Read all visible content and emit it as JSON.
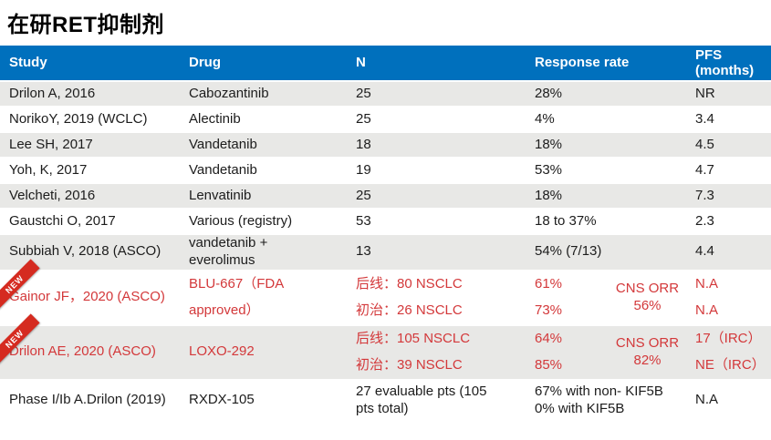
{
  "title": "在研RET抑制剂",
  "colors": {
    "header_bg": "#0070bd",
    "alt_row_bg": "#e8e8e6",
    "red_text": "#d3383a",
    "ribbon_bg": "#d52b20"
  },
  "ribbon_label": "NEW",
  "table": {
    "headers": [
      "Study",
      "Drug",
      "N",
      "Response rate",
      "PFS (months)"
    ],
    "rows": [
      {
        "study": "Drilon A, 2016",
        "drug": [
          "Cabozantinib"
        ],
        "n": [
          "25"
        ],
        "rr": [
          "28%"
        ],
        "pfs": [
          "NR"
        ],
        "shade": "alt"
      },
      {
        "study": "NorikoY, 2019 (WCLC)",
        "drug": [
          "Alectinib"
        ],
        "n": [
          "25"
        ],
        "rr": [
          "4%"
        ],
        "pfs": [
          "3.4"
        ]
      },
      {
        "study": "Lee SH, 2017",
        "drug": [
          "Vandetanib"
        ],
        "n": [
          "18"
        ],
        "rr": [
          "18%"
        ],
        "pfs": [
          "4.5"
        ],
        "shade": "alt"
      },
      {
        "study": "Yoh, K, 2017",
        "drug": [
          "Vandetanib"
        ],
        "n": [
          "19"
        ],
        "rr": [
          "53%"
        ],
        "pfs": [
          "4.7"
        ]
      },
      {
        "study": "Velcheti, 2016",
        "drug": [
          "Lenvatinib"
        ],
        "n": [
          "25"
        ],
        "rr": [
          "18%"
        ],
        "pfs": [
          "7.3"
        ],
        "shade": "alt"
      },
      {
        "study": "Gaustchi O, 2017",
        "drug": [
          "Various (registry)"
        ],
        "n": [
          "53"
        ],
        "rr": [
          "18 to 37%"
        ],
        "pfs": [
          "2.3"
        ]
      },
      {
        "study": "Subbiah V, 2018 (ASCO)",
        "drug": [
          "vandetanib +",
          "everolimus"
        ],
        "n": [
          "13"
        ],
        "rr": [
          "54% (7/13)"
        ],
        "pfs": [
          "4.4"
        ],
        "shade": "alt"
      },
      {
        "study": "Gainor JF，2020 (ASCO)",
        "drug": [
          "BLU-667（FDA",
          "approved）"
        ],
        "n": [
          "后线：80 NSCLC",
          "初治：26 NSCLC"
        ],
        "rr": [
          "61%",
          "73%"
        ],
        "cns": [
          "CNS ORR",
          "56%"
        ],
        "pfs": [
          "N.A",
          "N.A"
        ],
        "red": true,
        "ribbon": true,
        "spread": true
      },
      {
        "study": "Drilon AE, 2020 (ASCO)",
        "drug": [
          "LOXO-292"
        ],
        "n": [
          "后线：105 NSCLC",
          "初治：39 NSCLC"
        ],
        "rr": [
          "64%",
          "85%"
        ],
        "cns": [
          "CNS ORR",
          "82%"
        ],
        "pfs": [
          "17（IRC）",
          "NE（IRC）"
        ],
        "red": true,
        "ribbon": true,
        "spread": true,
        "shade": "alt"
      },
      {
        "study": "Phase I/Ib A.Drilon (2019)",
        "drug": [
          "RXDX-105"
        ],
        "n": [
          "27 evaluable pts (105",
          "pts total)"
        ],
        "rr": [
          "67% with non- KIF5B",
          "0% with KIF5B"
        ],
        "pfs": [
          "N.A"
        ],
        "tall2": true
      }
    ]
  }
}
